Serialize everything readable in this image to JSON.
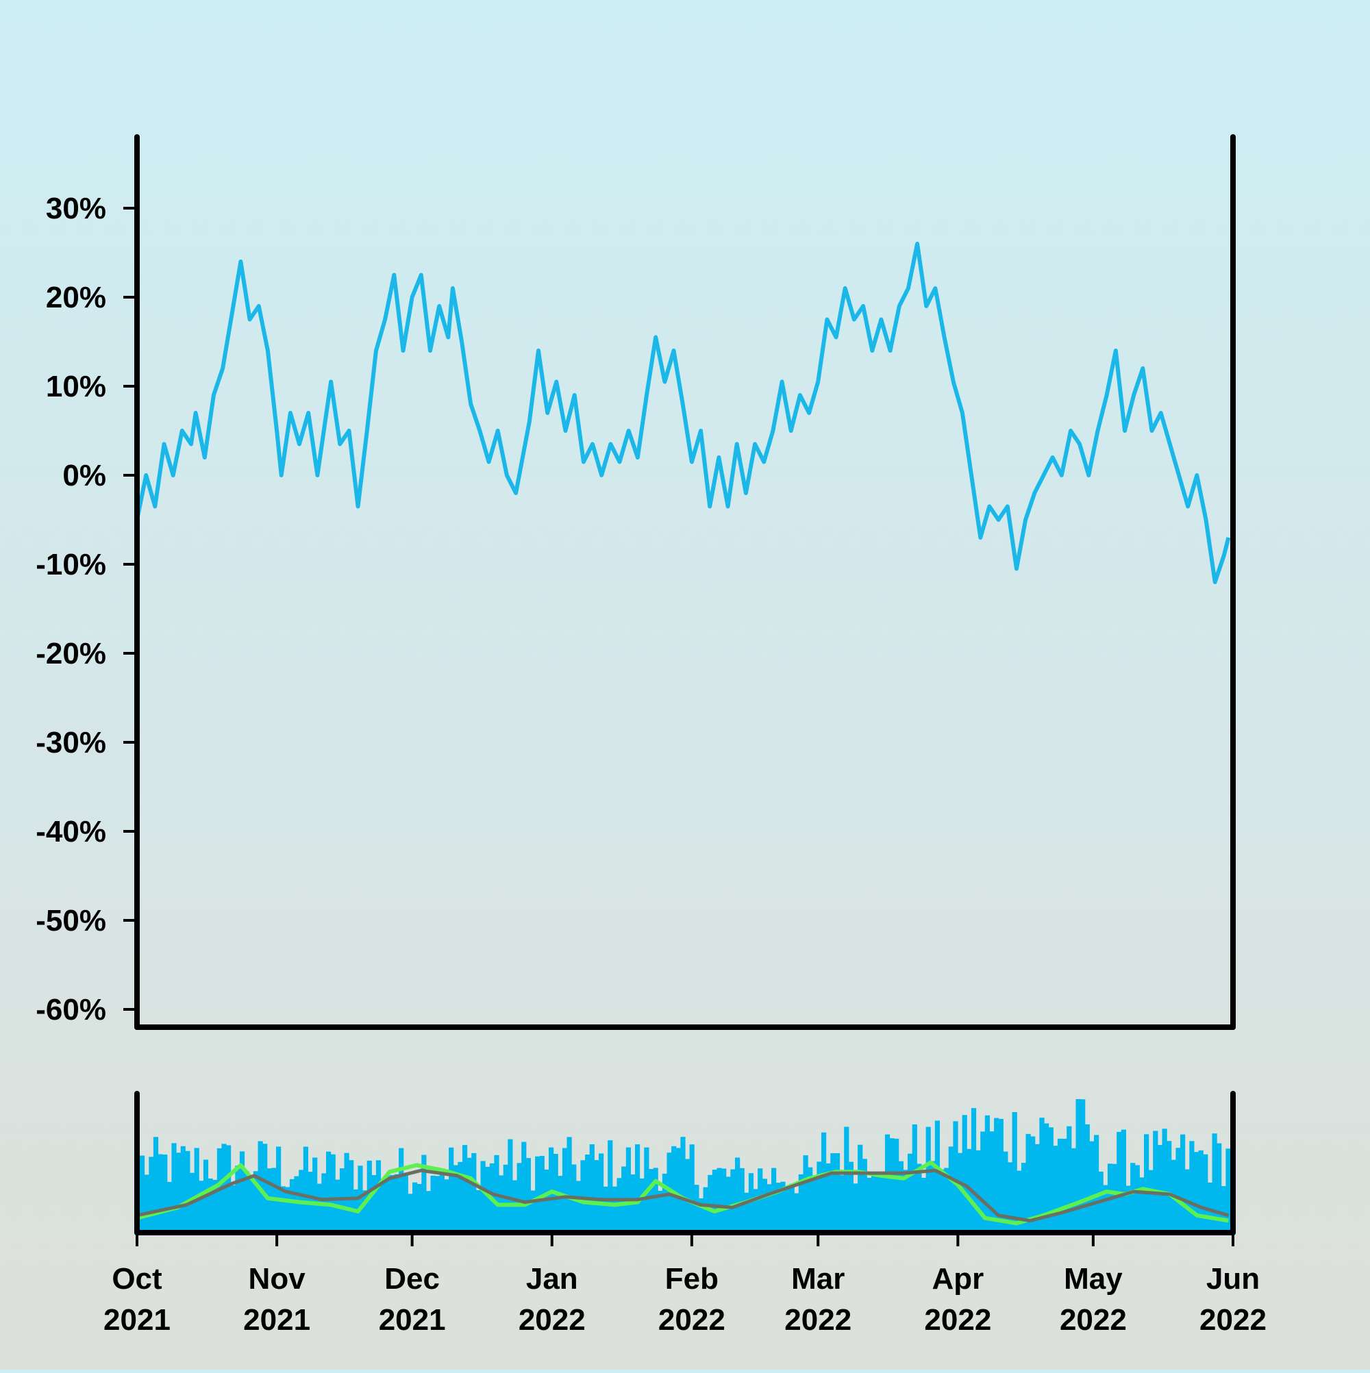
{
  "colors": {
    "price_line": "#1bb7e8",
    "volume_bars": "#00b8ee",
    "fast_average": "#5df050",
    "slow_average": "#6b6f62",
    "axis": "#000000",
    "background_top": "#cdeef4",
    "background_bottom": "#dde0d9"
  },
  "chart_data": [
    {
      "type": "line",
      "panel": "price",
      "x_start": "2021-10-01",
      "x_end": "2022-06-01",
      "y_unit": "%",
      "ylim": [
        -62,
        38
      ],
      "y_ticks": [
        {
          "value": 30,
          "label": "30%"
        },
        {
          "value": 20,
          "label": "20%"
        },
        {
          "value": 10,
          "label": "10%"
        },
        {
          "value": 0,
          "label": "0%"
        },
        {
          "value": -10,
          "label": "-10%"
        },
        {
          "value": -20,
          "label": "-20%"
        },
        {
          "value": -30,
          "label": "-30%"
        },
        {
          "value": -40,
          "label": "-40%"
        },
        {
          "value": -50,
          "label": "-50%"
        },
        {
          "value": -60,
          "label": "-60%"
        }
      ],
      "grid": false,
      "series": [
        {
          "points": [
            [
              "2021-10-01",
              -5
            ],
            [
              "2021-10-03",
              0
            ],
            [
              "2021-10-05",
              -3.5
            ],
            [
              "2021-10-07",
              3.5
            ],
            [
              "2021-10-09",
              0
            ],
            [
              "2021-10-11",
              5
            ],
            [
              "2021-10-13",
              3.5
            ],
            [
              "2021-10-14",
              7
            ],
            [
              "2021-10-16",
              2
            ],
            [
              "2021-10-18",
              9
            ],
            [
              "2021-10-20",
              12
            ],
            [
              "2021-10-22",
              18
            ],
            [
              "2021-10-24",
              24
            ],
            [
              "2021-10-26",
              17.5
            ],
            [
              "2021-10-28",
              19
            ],
            [
              "2021-10-30",
              14
            ],
            [
              "2021-11-01",
              5
            ],
            [
              "2021-11-02",
              0
            ],
            [
              "2021-11-04",
              7
            ],
            [
              "2021-11-06",
              3.5
            ],
            [
              "2021-11-08",
              7
            ],
            [
              "2021-11-10",
              0
            ],
            [
              "2021-11-12",
              7
            ],
            [
              "2021-11-13",
              10.5
            ],
            [
              "2021-11-15",
              3.5
            ],
            [
              "2021-11-17",
              5
            ],
            [
              "2021-11-19",
              -3.5
            ],
            [
              "2021-11-21",
              5
            ],
            [
              "2021-11-23",
              14
            ],
            [
              "2021-11-25",
              17.5
            ],
            [
              "2021-11-27",
              22.5
            ],
            [
              "2021-11-29",
              14
            ],
            [
              "2021-12-01",
              20
            ],
            [
              "2021-12-03",
              22.5
            ],
            [
              "2021-12-05",
              14
            ],
            [
              "2021-12-07",
              19
            ],
            [
              "2021-12-09",
              15.5
            ],
            [
              "2021-12-10",
              21
            ],
            [
              "2021-12-12",
              15
            ],
            [
              "2021-12-14",
              8
            ],
            [
              "2021-12-16",
              5
            ],
            [
              "2021-12-18",
              1.5
            ],
            [
              "2021-12-20",
              5
            ],
            [
              "2021-12-22",
              0
            ],
            [
              "2021-12-24",
              -2
            ],
            [
              "2021-12-27",
              6
            ],
            [
              "2021-12-29",
              14
            ],
            [
              "2021-12-31",
              7
            ],
            [
              "2022-01-02",
              10.5
            ],
            [
              "2022-01-04",
              5
            ],
            [
              "2022-01-06",
              9
            ],
            [
              "2022-01-08",
              1.5
            ],
            [
              "2022-01-10",
              3.5
            ],
            [
              "2022-01-12",
              0
            ],
            [
              "2022-01-14",
              3.5
            ],
            [
              "2022-01-16",
              1.5
            ],
            [
              "2022-01-18",
              5
            ],
            [
              "2022-01-20",
              2
            ],
            [
              "2022-01-22",
              9
            ],
            [
              "2022-01-24",
              15.5
            ],
            [
              "2022-01-26",
              10.5
            ],
            [
              "2022-01-28",
              14
            ],
            [
              "2022-01-30",
              8
            ],
            [
              "2022-02-01",
              1.5
            ],
            [
              "2022-02-03",
              5
            ],
            [
              "2022-02-05",
              -3.5
            ],
            [
              "2022-02-07",
              2
            ],
            [
              "2022-02-09",
              -3.5
            ],
            [
              "2022-02-11",
              3.5
            ],
            [
              "2022-02-13",
              -2
            ],
            [
              "2022-02-15",
              3.5
            ],
            [
              "2022-02-17",
              1.5
            ],
            [
              "2022-02-19",
              5
            ],
            [
              "2022-02-21",
              10.5
            ],
            [
              "2022-02-23",
              5
            ],
            [
              "2022-02-25",
              9
            ],
            [
              "2022-02-27",
              7
            ],
            [
              "2022-03-01",
              10.5
            ],
            [
              "2022-03-03",
              17.5
            ],
            [
              "2022-03-05",
              15.5
            ],
            [
              "2022-03-07",
              21
            ],
            [
              "2022-03-09",
              17.5
            ],
            [
              "2022-03-11",
              19
            ],
            [
              "2022-03-13",
              14
            ],
            [
              "2022-03-15",
              17.5
            ],
            [
              "2022-03-17",
              14
            ],
            [
              "2022-03-19",
              19
            ],
            [
              "2022-03-21",
              21
            ],
            [
              "2022-03-23",
              26
            ],
            [
              "2022-03-25",
              19
            ],
            [
              "2022-03-27",
              21
            ],
            [
              "2022-03-29",
              15.5
            ],
            [
              "2022-03-31",
              10.5
            ],
            [
              "2022-04-02",
              7
            ],
            [
              "2022-04-04",
              0
            ],
            [
              "2022-04-06",
              -7
            ],
            [
              "2022-04-08",
              -3.5
            ],
            [
              "2022-04-10",
              -5
            ],
            [
              "2022-04-12",
              -3.5
            ],
            [
              "2022-04-14",
              -10.5
            ],
            [
              "2022-04-16",
              -5
            ],
            [
              "2022-04-18",
              -2
            ],
            [
              "2022-04-20",
              0
            ],
            [
              "2022-04-22",
              2
            ],
            [
              "2022-04-24",
              0
            ],
            [
              "2022-04-26",
              5
            ],
            [
              "2022-04-28",
              3.5
            ],
            [
              "2022-04-30",
              0
            ],
            [
              "2022-05-02",
              5
            ],
            [
              "2022-05-04",
              9
            ],
            [
              "2022-05-06",
              14
            ],
            [
              "2022-05-08",
              5
            ],
            [
              "2022-05-10",
              9
            ],
            [
              "2022-05-12",
              12
            ],
            [
              "2022-05-14",
              5
            ],
            [
              "2022-05-16",
              7
            ],
            [
              "2022-05-18",
              3.5
            ],
            [
              "2022-05-20",
              0
            ],
            [
              "2022-05-22",
              -3.5
            ],
            [
              "2022-05-24",
              0
            ],
            [
              "2022-05-26",
              -5
            ],
            [
              "2022-05-28",
              -12
            ],
            [
              "2022-05-30",
              -9
            ],
            [
              "2022-05-31",
              -7
            ]
          ]
        }
      ],
      "x_ticks": [
        {
          "value": "2021-10-01",
          "month": "Oct",
          "year": "2021"
        },
        {
          "value": "2021-11-01",
          "month": "Nov",
          "year": "2021"
        },
        {
          "value": "2021-12-01",
          "month": "Dec",
          "year": "2021"
        },
        {
          "value": "2022-01-01",
          "month": "Jan",
          "year": "2022"
        },
        {
          "value": "2022-02-01",
          "month": "Feb",
          "year": "2022"
        },
        {
          "value": "2022-03-01",
          "month": "Mar",
          "year": "2022"
        },
        {
          "value": "2022-04-01",
          "month": "Apr",
          "year": "2022"
        },
        {
          "value": "2022-05-01",
          "month": "May",
          "year": "2022"
        },
        {
          "value": "2022-06-01",
          "month": "Jun",
          "year": "2022"
        }
      ]
    },
    {
      "type": "bar",
      "panel": "volume",
      "x_start": "2021-10-01",
      "x_end": "2022-06-01",
      "ylim": [
        0,
        1
      ],
      "volume_bar_count": 240,
      "volume_level_by_month": [
        {
          "month": "2021-10",
          "level": 0.55
        },
        {
          "month": "2021-11",
          "level": 0.5
        },
        {
          "month": "2021-12",
          "level": 0.55
        },
        {
          "month": "2022-01",
          "level": 0.55
        },
        {
          "month": "2022-02",
          "level": 0.45
        },
        {
          "month": "2022-03",
          "level": 0.65
        },
        {
          "month": "2022-04",
          "level": 0.8
        },
        {
          "month": "2022-05",
          "level": 0.6
        }
      ],
      "fast_average": [
        [
          "2021-10-01",
          0.1
        ],
        [
          "2021-10-10",
          0.18
        ],
        [
          "2021-10-19",
          0.35
        ],
        [
          "2021-10-24",
          0.5
        ],
        [
          "2021-10-30",
          0.25
        ],
        [
          "2021-11-06",
          0.22
        ],
        [
          "2021-11-13",
          0.2
        ],
        [
          "2021-11-19",
          0.15
        ],
        [
          "2021-11-26",
          0.45
        ],
        [
          "2021-12-02",
          0.5
        ],
        [
          "2021-12-08",
          0.46
        ],
        [
          "2021-12-14",
          0.4
        ],
        [
          "2021-12-20",
          0.2
        ],
        [
          "2021-12-26",
          0.2
        ],
        [
          "2022-01-01",
          0.3
        ],
        [
          "2022-01-08",
          0.22
        ],
        [
          "2022-01-15",
          0.2
        ],
        [
          "2022-01-20",
          0.22
        ],
        [
          "2022-01-24",
          0.38
        ],
        [
          "2022-01-30",
          0.25
        ],
        [
          "2022-02-06",
          0.15
        ],
        [
          "2022-02-13",
          0.22
        ],
        [
          "2022-02-20",
          0.3
        ],
        [
          "2022-02-27",
          0.4
        ],
        [
          "2022-03-05",
          0.45
        ],
        [
          "2022-03-10",
          0.45
        ],
        [
          "2022-03-15",
          0.42
        ],
        [
          "2022-03-20",
          0.4
        ],
        [
          "2022-03-26",
          0.52
        ],
        [
          "2022-04-01",
          0.35
        ],
        [
          "2022-04-07",
          0.1
        ],
        [
          "2022-04-14",
          0.06
        ],
        [
          "2022-04-20",
          0.12
        ],
        [
          "2022-04-28",
          0.22
        ],
        [
          "2022-05-04",
          0.3
        ],
        [
          "2022-05-08",
          0.28
        ],
        [
          "2022-05-12",
          0.32
        ],
        [
          "2022-05-18",
          0.28
        ],
        [
          "2022-05-24",
          0.12
        ],
        [
          "2022-05-31",
          0.08
        ]
      ],
      "slow_average": [
        [
          "2021-10-01",
          0.12
        ],
        [
          "2021-10-12",
          0.2
        ],
        [
          "2021-10-22",
          0.36
        ],
        [
          "2021-10-27",
          0.42
        ],
        [
          "2021-11-03",
          0.3
        ],
        [
          "2021-11-11",
          0.24
        ],
        [
          "2021-11-19",
          0.25
        ],
        [
          "2021-11-26",
          0.4
        ],
        [
          "2021-12-03",
          0.46
        ],
        [
          "2021-12-11",
          0.42
        ],
        [
          "2021-12-19",
          0.28
        ],
        [
          "2021-12-26",
          0.22
        ],
        [
          "2022-01-04",
          0.26
        ],
        [
          "2022-01-12",
          0.24
        ],
        [
          "2022-01-20",
          0.24
        ],
        [
          "2022-01-27",
          0.28
        ],
        [
          "2022-02-03",
          0.2
        ],
        [
          "2022-02-10",
          0.18
        ],
        [
          "2022-02-18",
          0.28
        ],
        [
          "2022-02-25",
          0.36
        ],
        [
          "2022-03-04",
          0.44
        ],
        [
          "2022-03-12",
          0.44
        ],
        [
          "2022-03-20",
          0.44
        ],
        [
          "2022-03-27",
          0.46
        ],
        [
          "2022-04-03",
          0.34
        ],
        [
          "2022-04-10",
          0.12
        ],
        [
          "2022-04-17",
          0.08
        ],
        [
          "2022-04-24",
          0.14
        ],
        [
          "2022-05-02",
          0.22
        ],
        [
          "2022-05-10",
          0.3
        ],
        [
          "2022-05-18",
          0.28
        ],
        [
          "2022-05-25",
          0.18
        ],
        [
          "2022-05-31",
          0.12
        ]
      ]
    }
  ]
}
